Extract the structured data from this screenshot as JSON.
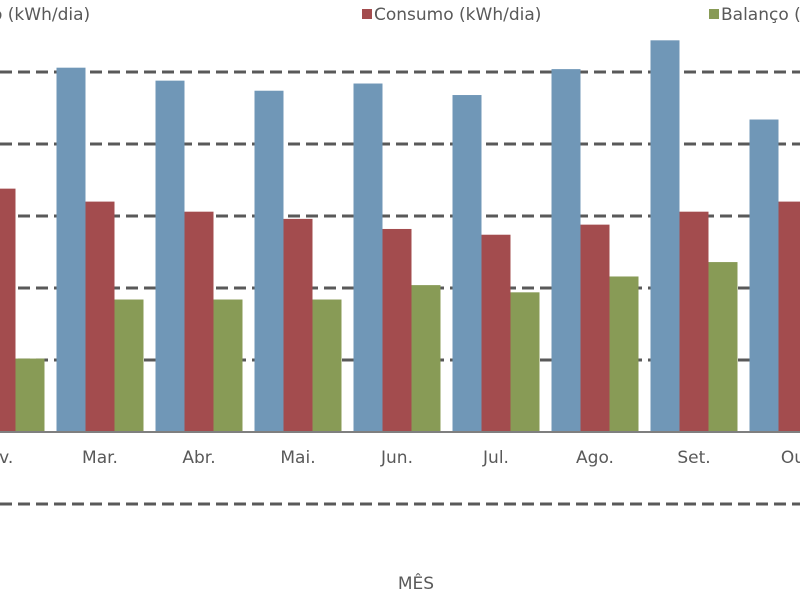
{
  "chart_data": {
    "type": "bar",
    "x_label": "MÊS",
    "categories": [
      "ev.",
      "Mar.",
      "Abr.",
      "Mai.",
      "Jun.",
      "Jul.",
      "Ago.",
      "Set.",
      "Ou"
    ],
    "series": [
      {
        "name": "o (kWh/dia)",
        "color": "#7097b7",
        "values": [
          null,
          25.3,
          24.4,
          23.7,
          24.2,
          23.4,
          25.2,
          27.2,
          21.7
        ]
      },
      {
        "name": "Consumo (kWh/dia)",
        "color": "#a34c4e",
        "values": [
          16.9,
          16.0,
          15.3,
          14.8,
          14.1,
          13.7,
          14.4,
          15.3,
          16.0
        ]
      },
      {
        "name": "Balanço (",
        "color": "#889b56",
        "values": [
          5.1,
          9.2,
          9.2,
          9.2,
          10.2,
          9.7,
          10.8,
          11.8,
          null
        ]
      }
    ],
    "ylim": [
      -10,
      30
    ],
    "yticks": [
      -5,
      5,
      10,
      15,
      20,
      25
    ],
    "grid": true,
    "show_y_tick_labels": false,
    "legend": "top"
  }
}
